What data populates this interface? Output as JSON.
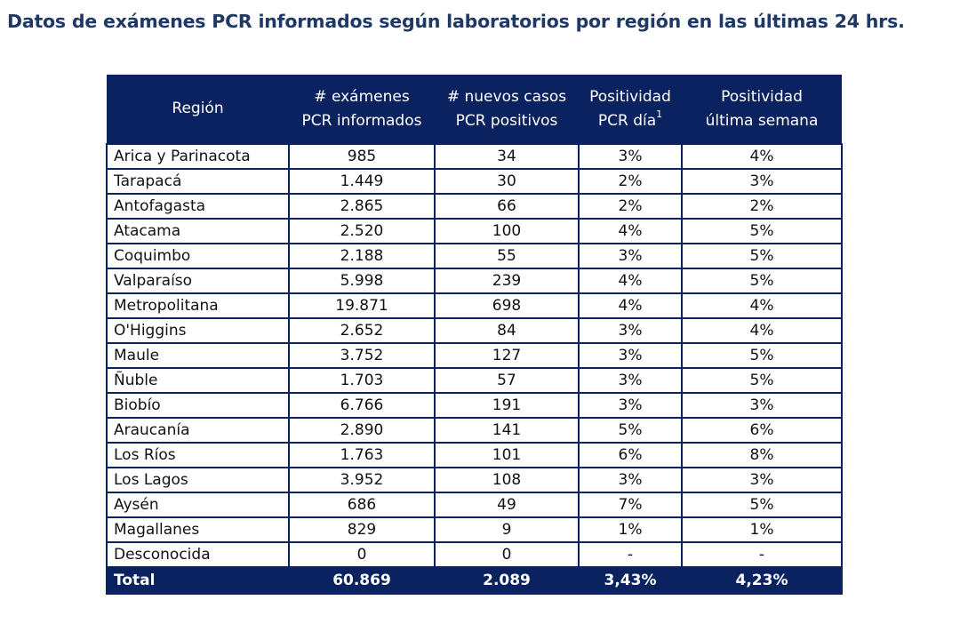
{
  "title": "Datos de exámenes PCR informados según laboratorios por región en las últimas 24 hrs.",
  "headers": {
    "region": "Región",
    "exams_line1": "# exámenes",
    "exams_line2": "PCR informados",
    "cases_line1": "# nuevos casos",
    "cases_line2": "PCR positivos",
    "pos_day_line1": "Positividad",
    "pos_day_line2": "PCR día",
    "pos_day_footnote": "1",
    "pos_week_line1": "Positividad",
    "pos_week_line2": "última semana"
  },
  "rows": [
    {
      "region": "Arica y Parinacota",
      "exams": "985",
      "cases": "34",
      "pos_day": "3%",
      "pos_week": "4%"
    },
    {
      "region": "Tarapacá",
      "exams": "1.449",
      "cases": "30",
      "pos_day": "2%",
      "pos_week": "3%"
    },
    {
      "region": "Antofagasta",
      "exams": "2.865",
      "cases": "66",
      "pos_day": "2%",
      "pos_week": "2%"
    },
    {
      "region": "Atacama",
      "exams": "2.520",
      "cases": "100",
      "pos_day": "4%",
      "pos_week": "5%"
    },
    {
      "region": "Coquimbo",
      "exams": "2.188",
      "cases": "55",
      "pos_day": "3%",
      "pos_week": "5%"
    },
    {
      "region": "Valparaíso",
      "exams": "5.998",
      "cases": "239",
      "pos_day": "4%",
      "pos_week": "5%"
    },
    {
      "region": "Metropolitana",
      "exams": "19.871",
      "cases": "698",
      "pos_day": "4%",
      "pos_week": "4%"
    },
    {
      "region": "O'Higgins",
      "exams": "2.652",
      "cases": "84",
      "pos_day": "3%",
      "pos_week": "4%"
    },
    {
      "region": "Maule",
      "exams": "3.752",
      "cases": "127",
      "pos_day": "3%",
      "pos_week": "5%"
    },
    {
      "region": "Ñuble",
      "exams": "1.703",
      "cases": "57",
      "pos_day": "3%",
      "pos_week": "5%"
    },
    {
      "region": "Biobío",
      "exams": "6.766",
      "cases": "191",
      "pos_day": "3%",
      "pos_week": "3%"
    },
    {
      "region": "Araucanía",
      "exams": "2.890",
      "cases": "141",
      "pos_day": "5%",
      "pos_week": "6%"
    },
    {
      "region": "Los Ríos",
      "exams": "1.763",
      "cases": "101",
      "pos_day": "6%",
      "pos_week": "8%"
    },
    {
      "region": "Los Lagos",
      "exams": "3.952",
      "cases": "108",
      "pos_day": "3%",
      "pos_week": "3%"
    },
    {
      "region": "Aysén",
      "exams": "686",
      "cases": "49",
      "pos_day": "7%",
      "pos_week": "5%"
    },
    {
      "region": "Magallanes",
      "exams": "829",
      "cases": "9",
      "pos_day": "1%",
      "pos_week": "1%"
    },
    {
      "region": "Desconocida",
      "exams": "0",
      "cases": "0",
      "pos_day": "-",
      "pos_week": "-"
    }
  ],
  "total": {
    "label": "Total",
    "exams": "60.869",
    "cases": "2.089",
    "pos_day": "3,43%",
    "pos_week": "4,23%"
  },
  "colors": {
    "header_bg": "#0b2260",
    "title_text": "#1f3864",
    "cell_border": "#0b2260"
  }
}
